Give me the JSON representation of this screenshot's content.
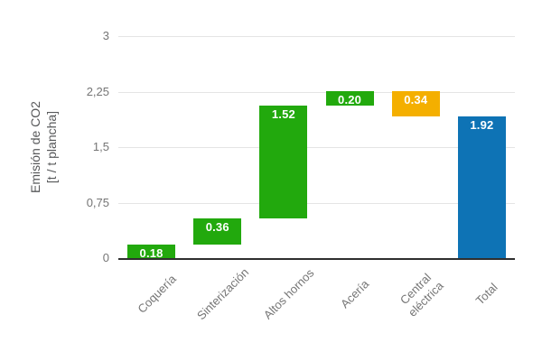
{
  "chart_data": {
    "type": "bar",
    "subtype": "waterfall",
    "title": "",
    "xlabel": "",
    "ylabel_lines": [
      "Emisión de CO2",
      "[t / t plancha]"
    ],
    "ylim": [
      0,
      3
    ],
    "grid": true,
    "legend_position": "none",
    "y_ticks": [
      {
        "value": 0,
        "label": "0"
      },
      {
        "value": 0.75,
        "label": "0,75"
      },
      {
        "value": 1.5,
        "label": "1,5"
      },
      {
        "value": 2.25,
        "label": "2,25"
      },
      {
        "value": 3,
        "label": "3"
      }
    ],
    "categories": [
      "Coquería",
      "Sinterización",
      "Altos hornos",
      "Acería",
      "Central eléctrica",
      "Total"
    ],
    "bars": [
      {
        "category": "Coquería",
        "label_lines": [
          "Coquería"
        ],
        "value": 0.18,
        "data_label": "0.18",
        "start": 0,
        "end": 0.18,
        "color": "#22a90d"
      },
      {
        "category": "Sinterización",
        "label_lines": [
          "Sinterización"
        ],
        "value": 0.36,
        "data_label": "0.36",
        "start": 0.18,
        "end": 0.54,
        "color": "#22a90d"
      },
      {
        "category": "Altos hornos",
        "label_lines": [
          "Altos hornos"
        ],
        "value": 1.52,
        "data_label": "1.52",
        "start": 0.54,
        "end": 2.06,
        "color": "#22a90d"
      },
      {
        "category": "Acería",
        "label_lines": [
          "Acería"
        ],
        "value": 0.2,
        "data_label": "0.20",
        "start": 2.06,
        "end": 2.26,
        "color": "#22a90d"
      },
      {
        "category": "Central eléctrica",
        "label_lines": [
          "Central",
          "eléctrica"
        ],
        "value": 0.34,
        "data_label": "0.34",
        "start": 1.92,
        "end": 2.26,
        "color": "#f4af00"
      },
      {
        "category": "Total",
        "label_lines": [
          "Total"
        ],
        "value": 1.92,
        "data_label": "1.92",
        "start": 0,
        "end": 1.92,
        "color": "#0e73b5"
      }
    ],
    "colors": {
      "process_step": "#22a90d",
      "power_plant": "#f4af00",
      "total": "#0e73b5",
      "gridline": "#e4e4e4",
      "axis_line": "#2f2f2f",
      "tick_text": "#757575",
      "axis_title_text": "#57585a",
      "bar_label_text": "#ffffff"
    }
  }
}
